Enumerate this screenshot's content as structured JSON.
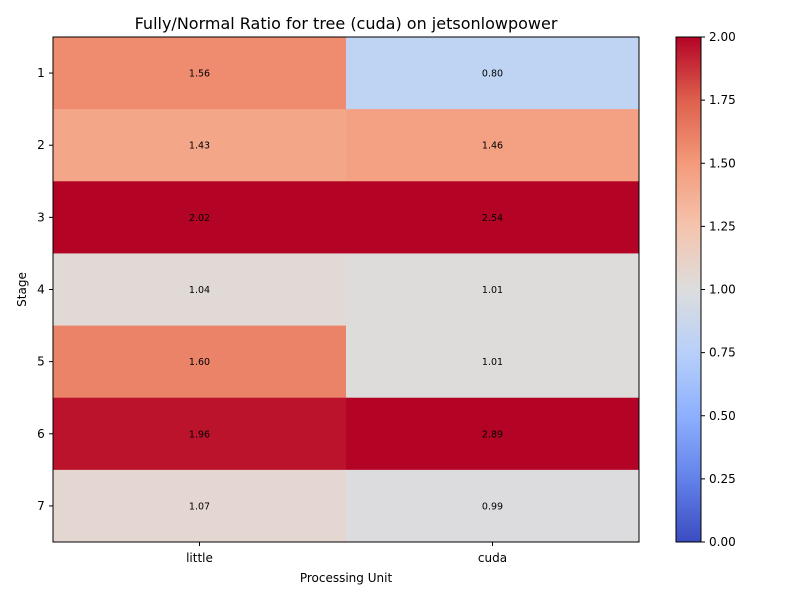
{
  "chart_data": {
    "type": "heatmap",
    "title": "Fully/Normal Ratio for tree (cuda) on jetsonlowpower",
    "xlabel": "Processing Unit",
    "ylabel": "Stage",
    "x_categories": [
      "little",
      "cuda"
    ],
    "y_categories": [
      "1",
      "2",
      "3",
      "4",
      "5",
      "6",
      "7"
    ],
    "values": [
      [
        1.56,
        0.8
      ],
      [
        1.43,
        1.46
      ],
      [
        2.02,
        2.54
      ],
      [
        1.04,
        1.01
      ],
      [
        1.6,
        1.01
      ],
      [
        1.96,
        2.89
      ],
      [
        1.07,
        0.99
      ]
    ],
    "value_labels": [
      [
        "1.56",
        "0.80"
      ],
      [
        "1.43",
        "1.46"
      ],
      [
        "2.02",
        "2.54"
      ],
      [
        "1.04",
        "1.01"
      ],
      [
        "1.60",
        "1.01"
      ],
      [
        "1.96",
        "2.89"
      ],
      [
        "1.07",
        "0.99"
      ]
    ],
    "colorscale": "coolwarm",
    "vmin": 0.0,
    "vmax": 2.0,
    "colorbar_ticks": [
      "0.00",
      "0.25",
      "0.50",
      "0.75",
      "1.00",
      "1.25",
      "1.50",
      "1.75",
      "2.00"
    ],
    "grid": false
  }
}
